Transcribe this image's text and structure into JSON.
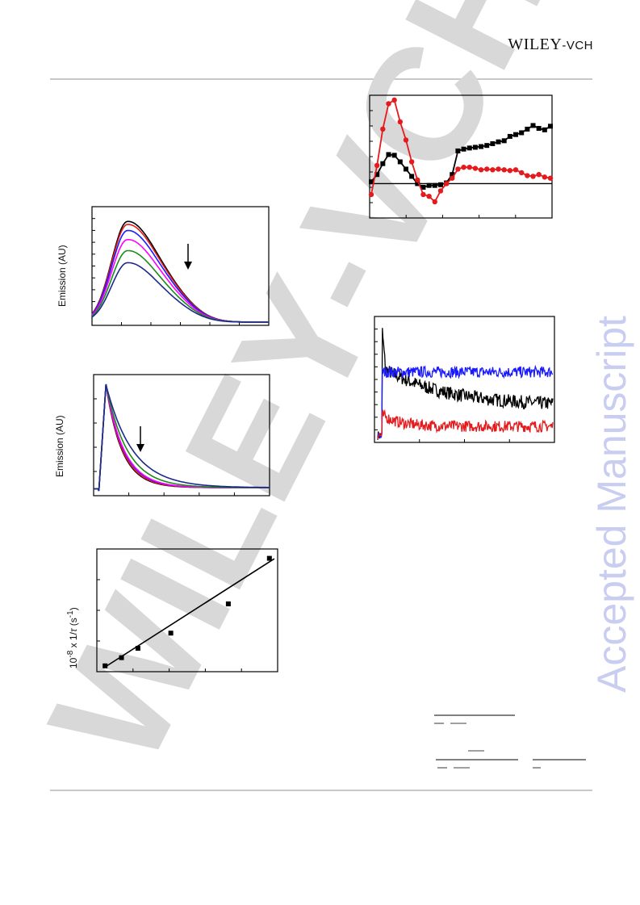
{
  "header": {
    "logo_main": "WILEY",
    "logo_suffix": "-VCH"
  },
  "watermark": {
    "diagonal": "WILEY-VCH",
    "side": "Accepted Manuscript"
  },
  "colors": {
    "black": "#000000",
    "red": "#e41a1c",
    "blue": "#1a1aff",
    "magenta": "#ff00ff",
    "green": "#1b8a1b",
    "navy": "#1c2a8c",
    "watermark": "#d8d8d8",
    "side_watermark": "#c9cdf0"
  },
  "panels": {
    "emission_spectra": {
      "ylabel": "Emission (AU)"
    },
    "emission_decay": {
      "ylabel": "Emission (AU)"
    },
    "rate_plot": {
      "ylabel_prefix": "10",
      "ylabel_exp": "-8",
      "ylabel_mid": " x 1/",
      "ylabel_tau": "τ",
      "ylabel_unit_open": " (s",
      "ylabel_unit_exp": "-1",
      "ylabel_unit_close": ")"
    }
  },
  "chart_data": [
    {
      "type": "line",
      "id": "emission_spectra",
      "ylabel": "Emission (AU)",
      "series": [
        {
          "color": "#000000",
          "peak": 1.0
        },
        {
          "color": "#e41a1c",
          "peak": 0.97
        },
        {
          "color": "#1a1aff",
          "peak": 0.91
        },
        {
          "color": "#ff00ff",
          "peak": 0.82
        },
        {
          "color": "#1b8a1b",
          "peak": 0.71
        },
        {
          "color": "#1c2a8c",
          "peak": 0.59
        }
      ]
    },
    {
      "type": "line",
      "id": "emission_decay",
      "ylabel": "Emission (AU)",
      "series": [
        {
          "color": "#000000",
          "decay": 0.3
        },
        {
          "color": "#e41a1c",
          "decay": 0.31
        },
        {
          "color": "#1a1aff",
          "decay": 0.33
        },
        {
          "color": "#ff00ff",
          "decay": 0.34
        },
        {
          "color": "#1b8a1b",
          "decay": 0.4
        },
        {
          "color": "#1c2a8c",
          "decay": 0.5
        }
      ]
    },
    {
      "type": "scatter",
      "id": "rate_plot",
      "ylabel": "10-8 x 1/τ (s-1)",
      "x": [
        0.0,
        0.1,
        0.2,
        0.4,
        0.75,
        1.0
      ],
      "y": [
        0.05,
        0.12,
        0.2,
        0.33,
        0.58,
        0.97
      ],
      "fit": {
        "slope": 0.9,
        "intercept": 0.04
      },
      "xlim": [
        -0.05,
        1.05
      ],
      "ylim": [
        0,
        1.05
      ]
    },
    {
      "type": "line",
      "id": "transient_spectra",
      "series": [
        {
          "color": "#000000",
          "marker": "square",
          "values": [
            0.05,
            0.25,
            0.55,
            0.8,
            0.78,
            0.6,
            0.4,
            0.2,
            0.0,
            -0.1,
            -0.05,
            -0.05,
            -0.03,
            0.02,
            0.25,
            0.9,
            0.95,
            0.98,
            1.0,
            1.02,
            1.05,
            1.1,
            1.15,
            1.18,
            1.3,
            1.35,
            1.4,
            1.5,
            1.6,
            1.52,
            1.48,
            1.58
          ]
        },
        {
          "color": "#e41a1c",
          "marker": "circle",
          "values": [
            -0.3,
            0.5,
            1.5,
            2.2,
            2.3,
            1.7,
            1.2,
            0.6,
            0.1,
            -0.3,
            -0.35,
            -0.5,
            -0.2,
            0.0,
            0.15,
            0.4,
            0.45,
            0.45,
            0.42,
            0.38,
            0.4,
            0.38,
            0.4,
            0.38,
            0.36,
            0.38,
            0.3,
            0.22,
            0.2,
            0.25,
            0.18,
            0.15
          ]
        }
      ]
    },
    {
      "type": "line",
      "id": "transient_kinetics",
      "series": [
        {
          "color": "#000000",
          "level": 0.28,
          "spike": 1.0,
          "start": 0.62,
          "tau": 0.35,
          "noise": 0.06
        },
        {
          "color": "#1a1aff",
          "level": 0.58,
          "spike": 0.0,
          "start": 0.58,
          "tau": 1.0,
          "noise": 0.05
        },
        {
          "color": "#e41a1c",
          "level": 0.1,
          "spike": 0.0,
          "start": 0.2,
          "tau": 0.1,
          "noise": 0.05
        }
      ]
    }
  ],
  "equation_lines": {
    "eq1": "",
    "eq2": ""
  }
}
